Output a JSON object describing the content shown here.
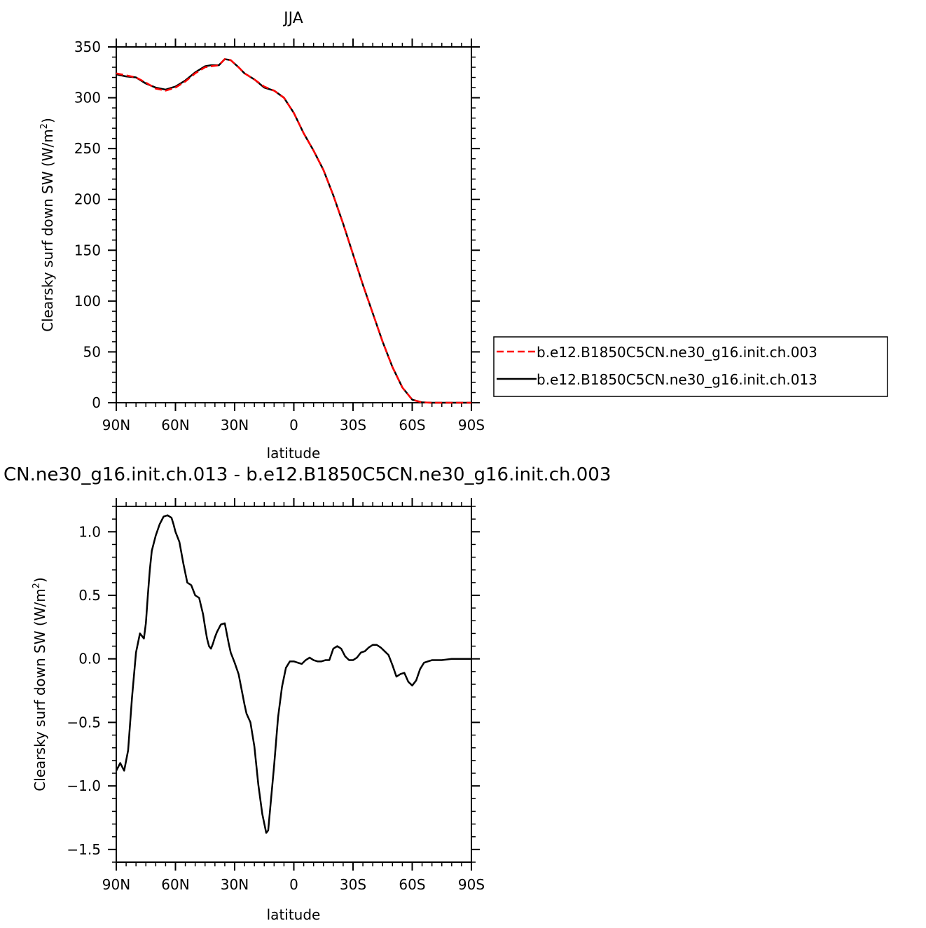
{
  "chart_data": [
    {
      "type": "line",
      "title": "JJA",
      "xlabel": "latitude",
      "ylabel_main": "Clearsky surf down SW (W/m",
      "ylabel_sup": "2",
      "ylabel_close": ")",
      "xlim": [
        90,
        -90
      ],
      "ylim": [
        0,
        350
      ],
      "xticks": [
        {
          "value": 90,
          "label": "90N"
        },
        {
          "value": 60,
          "label": "60N"
        },
        {
          "value": 30,
          "label": "30N"
        },
        {
          "value": 0,
          "label": "0"
        },
        {
          "value": -30,
          "label": "30S"
        },
        {
          "value": -60,
          "label": "60S"
        },
        {
          "value": -90,
          "label": "90S"
        }
      ],
      "yticks": [
        {
          "value": 0,
          "label": "0"
        },
        {
          "value": 50,
          "label": "50"
        },
        {
          "value": 100,
          "label": "100"
        },
        {
          "value": 150,
          "label": "150"
        },
        {
          "value": 200,
          "label": "200"
        },
        {
          "value": 250,
          "label": "250"
        },
        {
          "value": 300,
          "label": "300"
        },
        {
          "value": 350,
          "label": "350"
        }
      ],
      "legend_position": "right",
      "series": [
        {
          "name": "b.e12.B1850C5CN.ne30_g16.init.ch.003",
          "color": "#ff0000",
          "dash": "dashed",
          "x": [
            90,
            85,
            80,
            75,
            70,
            65,
            60,
            55,
            50,
            45,
            42,
            38,
            35,
            32,
            28,
            25,
            20,
            15,
            10,
            5,
            0,
            -5,
            -10,
            -15,
            -20,
            -25,
            -30,
            -35,
            -40,
            -45,
            -50,
            -55,
            -60,
            -65,
            -70,
            -75,
            -80,
            -85,
            -90
          ],
          "y": [
            324,
            322,
            320,
            315,
            309,
            307,
            310,
            316,
            324,
            330,
            331,
            332,
            338,
            337,
            330,
            324,
            318,
            311,
            307,
            300,
            285,
            265,
            248,
            229,
            204,
            176,
            146,
            116,
            88,
            60,
            35,
            15,
            3,
            0.3,
            0,
            0,
            0,
            0,
            0
          ]
        },
        {
          "name": "b.e12.B1850C5CN.ne30_g16.init.ch.013",
          "color": "#000000",
          "dash": "solid",
          "x": [
            90,
            85,
            80,
            75,
            70,
            65,
            60,
            55,
            50,
            45,
            42,
            38,
            35,
            32,
            28,
            25,
            20,
            15,
            10,
            5,
            0,
            -5,
            -10,
            -15,
            -20,
            -25,
            -30,
            -35,
            -40,
            -45,
            -50,
            -55,
            -60,
            -65,
            -70,
            -75,
            -80,
            -85,
            -90
          ],
          "y": [
            323,
            321,
            320,
            314,
            310,
            308,
            311,
            317,
            325,
            331,
            332,
            332,
            338,
            337,
            330,
            324,
            318,
            310,
            307,
            300,
            285,
            265,
            248,
            229,
            204,
            176,
            146,
            116,
            88,
            60,
            35,
            15,
            3,
            0.3,
            0,
            0,
            0,
            0,
            0
          ]
        }
      ]
    },
    {
      "type": "line",
      "title": "CN.ne30_g16.init.ch.013 - b.e12.B1850C5CN.ne30_g16.init.ch.003",
      "xlabel": "latitude",
      "ylabel_main": "Clearsky surf down SW (W/m",
      "ylabel_sup": "2",
      "ylabel_close": ")",
      "xlim": [
        90,
        -90
      ],
      "ylim": [
        -1.6,
        1.2
      ],
      "xticks": [
        {
          "value": 90,
          "label": "90N"
        },
        {
          "value": 60,
          "label": "60N"
        },
        {
          "value": 30,
          "label": "30N"
        },
        {
          "value": 0,
          "label": "0"
        },
        {
          "value": -30,
          "label": "30S"
        },
        {
          "value": -60,
          "label": "60S"
        },
        {
          "value": -90,
          "label": "90S"
        }
      ],
      "yticks": [
        {
          "value": -1.5,
          "label": "−1.5"
        },
        {
          "value": -1.0,
          "label": "−1.0"
        },
        {
          "value": -0.5,
          "label": "−0.5"
        },
        {
          "value": 0.0,
          "label": "0.0"
        },
        {
          "value": 0.5,
          "label": "0.5"
        },
        {
          "value": 1.0,
          "label": "1.0"
        }
      ],
      "series": [
        {
          "color": "#000000",
          "dash": "solid",
          "x": [
            90,
            88,
            86,
            84,
            82,
            80,
            78,
            76,
            75,
            74,
            73,
            72,
            70,
            68,
            66,
            64,
            62,
            61,
            60,
            58,
            56,
            54,
            52,
            50,
            48,
            46,
            45,
            44,
            43,
            42,
            41,
            40,
            39,
            37,
            35,
            33,
            32,
            30,
            28,
            26,
            25,
            24,
            22,
            20,
            18,
            16,
            14,
            13,
            12,
            10,
            8,
            6,
            4,
            2,
            0,
            -2,
            -4,
            -6,
            -8,
            -10,
            -12,
            -14,
            -16,
            -18,
            -20,
            -22,
            -24,
            -26,
            -28,
            -30,
            -32,
            -34,
            -36,
            -38,
            -40,
            -42,
            -44,
            -46,
            -48,
            -50,
            -52,
            -54,
            -56,
            -58,
            -60,
            -62,
            -64,
            -66,
            -68,
            -70,
            -75,
            -80,
            -85,
            -90
          ],
          "y": [
            -0.88,
            -0.82,
            -0.88,
            -0.72,
            -0.3,
            0.05,
            0.2,
            0.16,
            0.28,
            0.5,
            0.7,
            0.85,
            0.97,
            1.06,
            1.12,
            1.13,
            1.11,
            1.06,
            1.0,
            0.92,
            0.75,
            0.6,
            0.58,
            0.5,
            0.48,
            0.35,
            0.25,
            0.16,
            0.1,
            0.08,
            0.12,
            0.17,
            0.21,
            0.27,
            0.28,
            0.12,
            0.05,
            -0.03,
            -0.12,
            -0.28,
            -0.36,
            -0.43,
            -0.5,
            -0.69,
            -0.99,
            -1.22,
            -1.37,
            -1.35,
            -1.18,
            -0.84,
            -0.46,
            -0.22,
            -0.07,
            -0.02,
            -0.02,
            -0.03,
            -0.04,
            -0.01,
            0.01,
            -0.01,
            -0.02,
            -0.02,
            -0.01,
            -0.01,
            0.08,
            0.1,
            0.08,
            0.02,
            -0.01,
            -0.01,
            0.01,
            0.05,
            0.06,
            0.09,
            0.11,
            0.11,
            0.09,
            0.06,
            0.03,
            -0.05,
            -0.14,
            -0.12,
            -0.11,
            -0.18,
            -0.21,
            -0.17,
            -0.08,
            -0.03,
            -0.02,
            -0.01,
            -0.01,
            0,
            0,
            0
          ]
        }
      ]
    }
  ]
}
